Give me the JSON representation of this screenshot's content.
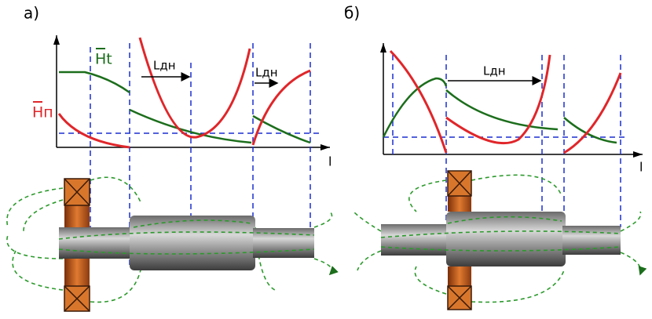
{
  "panels": [
    {
      "label": "а)",
      "axis_label": "l",
      "annotations": [
        "Ht",
        "Hп",
        "Lдн",
        "Lдн"
      ]
    },
    {
      "label": "б)",
      "axis_label": "l",
      "annotations": [
        "Lдн"
      ]
    }
  ]
}
